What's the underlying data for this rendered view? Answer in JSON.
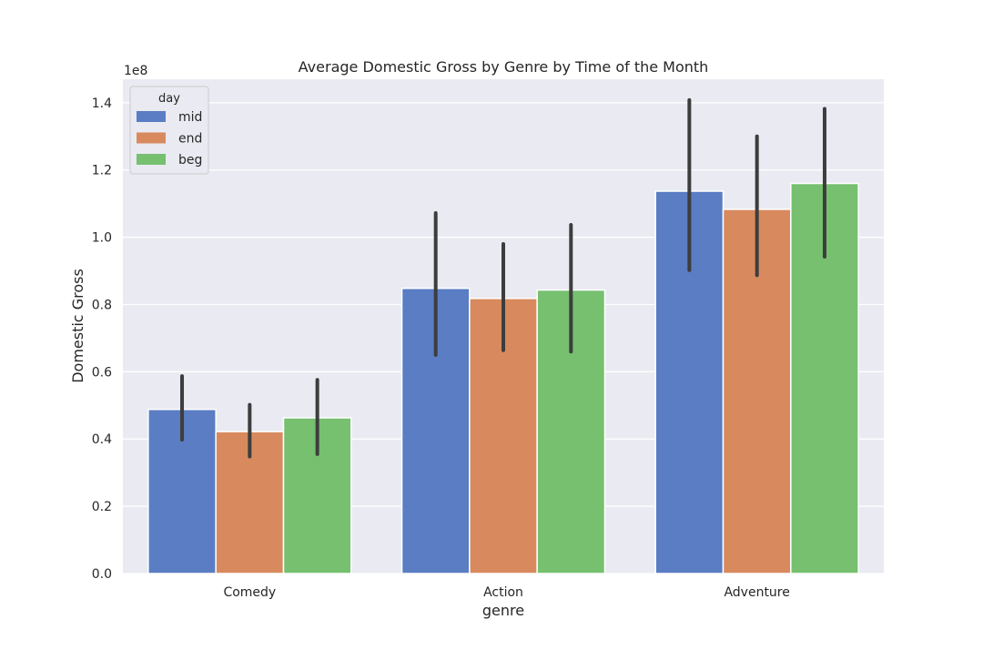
{
  "chart_data": {
    "type": "bar",
    "title": "Average Domestic Gross by Genre by Time of the Month",
    "xlabel": "genre",
    "ylabel": "Domestic Gross",
    "y_offset_text": "1e8",
    "y_multiplier": 100000000,
    "categories": [
      "Comedy",
      "Action",
      "Adventure"
    ],
    "ylim": [
      0,
      1.47
    ],
    "yticks": [
      0.0,
      0.2,
      0.4,
      0.6,
      0.8,
      1.0,
      1.2,
      1.4
    ],
    "ytick_labels": [
      "0.0",
      "0.2",
      "0.4",
      "0.6",
      "0.8",
      "1.0",
      "1.2",
      "1.4"
    ],
    "grid": true,
    "legend": {
      "title": "day",
      "position": "top-left"
    },
    "series": [
      {
        "name": "mid",
        "color": "#5a7dc3",
        "values": [
          0.488,
          0.848,
          1.137
        ],
        "ci_low": [
          0.398,
          0.65,
          0.902
        ],
        "ci_high": [
          0.587,
          1.072,
          1.408
        ]
      },
      {
        "name": "end",
        "color": "#d88a5e",
        "values": [
          0.422,
          0.818,
          1.083
        ],
        "ci_low": [
          0.348,
          0.664,
          0.887
        ],
        "ci_high": [
          0.502,
          0.98,
          1.3
        ]
      },
      {
        "name": "beg",
        "color": "#76c06f",
        "values": [
          0.463,
          0.843,
          1.16
        ],
        "ci_low": [
          0.355,
          0.66,
          0.942
        ],
        "ci_high": [
          0.576,
          1.037,
          1.382
        ]
      }
    ],
    "colors": {
      "plot_background": "#eaeaf2",
      "grid": "#ffffff",
      "error_bar": "#3d3d3d",
      "text": "#262626"
    }
  }
}
